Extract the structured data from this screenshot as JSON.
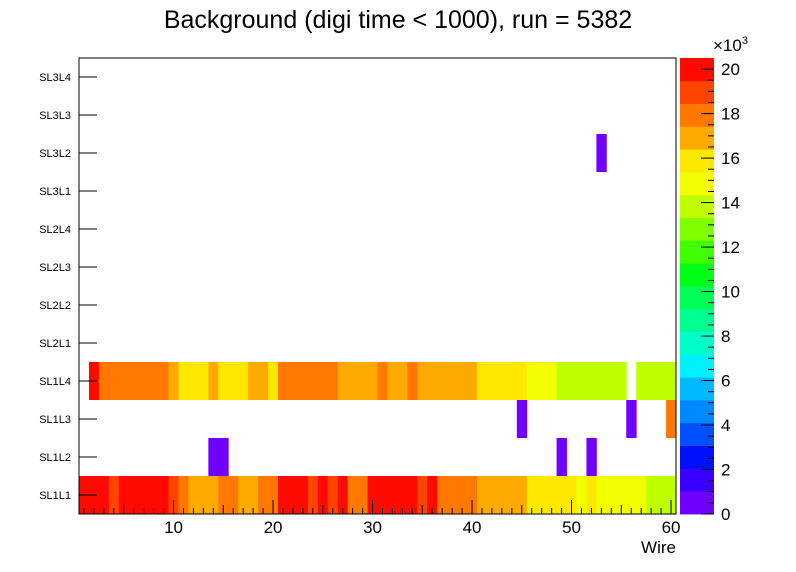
{
  "chart_data": {
    "type": "heatmap",
    "title": "Background (digi time < 1000), run = 5382",
    "xlabel": "Wire",
    "ylabel": "",
    "xlim": [
      0.5,
      60.5
    ],
    "x_ticks": [
      10,
      20,
      30,
      40,
      50,
      60
    ],
    "y_categories": [
      "SL1L1",
      "SL1L2",
      "SL1L3",
      "SL1L4",
      "SL2L1",
      "SL2L2",
      "SL2L3",
      "SL2L4",
      "SL3L1",
      "SL3L2",
      "SL3L3",
      "SL3L4"
    ],
    "z_range": [
      0,
      20500
    ],
    "z_ticks": [
      0,
      2,
      4,
      6,
      8,
      10,
      12,
      14,
      16,
      18,
      20
    ],
    "z_multiplier_label": "×10",
    "z_multiplier_exp": "3",
    "palette": [
      "#7000ff",
      "#3a00ff",
      "#0010ff",
      "#0050ff",
      "#0088ff",
      "#00b8ff",
      "#00f0ff",
      "#00ffc8",
      "#00ff90",
      "#00ff55",
      "#00ff14",
      "#40ff00",
      "#80ff00",
      "#c0ff00",
      "#f2ff00",
      "#ffe800",
      "#ffaa00",
      "#ff7800",
      "#ff4400",
      "#ff0a00"
    ],
    "cells": [
      {
        "layer": "SL1L1",
        "values": [
          20000,
          20000,
          20000,
          19000,
          20000,
          20000,
          20000,
          20000,
          20000,
          19000,
          18000,
          17000,
          17000,
          17000,
          18000,
          18000,
          17000,
          17000,
          18000,
          18000,
          20000,
          20000,
          20000,
          19000,
          20000,
          19000,
          20000,
          18000,
          18000,
          20000,
          20000,
          20000,
          20000,
          20000,
          19000,
          20000,
          18000,
          18000,
          18000,
          18000,
          17000,
          17000,
          17000,
          17000,
          17000,
          15500,
          15500,
          15500,
          15500,
          15500,
          15000,
          16000,
          15000,
          15000,
          15000,
          14500,
          15000,
          13500,
          13500,
          13500
        ]
      },
      {
        "layer": "SL1L2",
        "cells": [
          {
            "wire": 14,
            "value": 200
          },
          {
            "wire": 15,
            "value": 200
          },
          {
            "wire": 49,
            "value": 200
          },
          {
            "wire": 52,
            "value": 200
          }
        ]
      },
      {
        "layer": "SL1L3",
        "cells": [
          {
            "wire": 45,
            "value": 200
          },
          {
            "wire": 56,
            "value": 200
          },
          {
            "wire": 60,
            "value": 17500
          }
        ]
      },
      {
        "layer": "SL1L4",
        "values": [
          null,
          19500,
          18000,
          18000,
          18000,
          18000,
          18000,
          18000,
          18000,
          17000,
          16000,
          16000,
          16000,
          17000,
          16000,
          16000,
          16000,
          17000,
          17000,
          16000,
          18000,
          18000,
          18000,
          18000,
          18000,
          18000,
          17000,
          17000,
          17000,
          17000,
          18000,
          17000,
          17000,
          18000,
          17000,
          17000,
          17000,
          17000,
          17000,
          17000,
          16000,
          16000,
          16000,
          15500,
          16000,
          15000,
          15000,
          15000,
          14000,
          14000,
          14000,
          14000,
          14000,
          14000,
          13500,
          null,
          14000,
          14000,
          14000,
          14000
        ]
      },
      {
        "layer": "SL3L2",
        "cells": [
          {
            "wire": 53,
            "value": 200
          }
        ]
      }
    ]
  }
}
